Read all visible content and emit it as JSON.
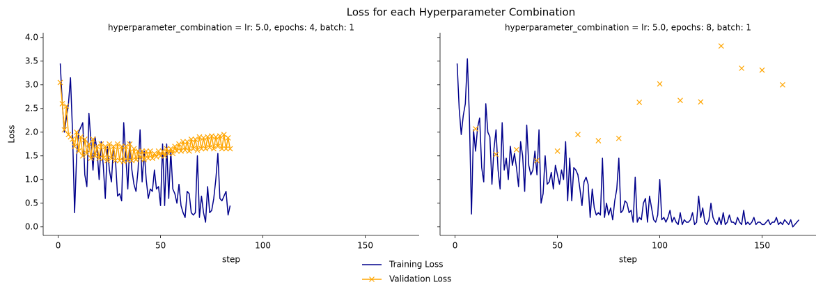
{
  "title": "Loss for each Hyperparameter Combination",
  "sharey": true,
  "chart_data": [
    {
      "type": "line",
      "title": "hyperparameter_combination = lr: 5.0, epochs: 4, batch: 1",
      "xlabel": "step",
      "ylabel": "Loss",
      "xlim": [
        -7.35,
        176.35
      ],
      "xticks": [
        0,
        50,
        100,
        150
      ],
      "ylim": [
        -0.18,
        4.1
      ],
      "yticks": [
        {
          "value": 0,
          "label": "0.0"
        },
        0.5,
        {
          "value": 1,
          "label": "1.0"
        },
        1.5,
        {
          "value": 2,
          "label": "2.0"
        },
        2.5,
        {
          "value": 3,
          "label": "3.0"
        },
        3.5,
        {
          "value": 4,
          "label": "4.0"
        }
      ],
      "series": [
        {
          "name": "Training Loss",
          "color": "#00008b",
          "line": true,
          "marker": "none",
          "x": [
            1,
            2,
            3,
            4,
            5,
            6,
            7,
            8,
            9,
            10,
            11,
            12,
            13,
            14,
            15,
            16,
            17,
            18,
            19,
            20,
            21,
            22,
            23,
            24,
            25,
            26,
            27,
            28,
            29,
            30,
            31,
            32,
            33,
            34,
            35,
            36,
            37,
            38,
            39,
            40,
            41,
            42,
            43,
            44,
            45,
            46,
            47,
            48,
            49,
            50,
            51,
            52,
            53,
            54,
            55,
            56,
            57,
            58,
            59,
            60,
            61,
            62,
            63,
            64,
            65,
            66,
            67,
            68,
            69,
            70,
            71,
            72,
            73,
            74,
            75,
            76,
            77,
            78,
            79,
            80,
            81,
            82,
            83,
            84
          ],
          "values": [
            3.45,
            2.6,
            2.0,
            2.3,
            2.6,
            3.15,
            2.0,
            0.3,
            1.5,
            2.0,
            2.1,
            2.2,
            1.1,
            0.85,
            2.4,
            1.8,
            1.2,
            1.9,
            1.6,
            1.0,
            1.8,
            1.3,
            0.6,
            1.7,
            1.2,
            0.95,
            1.7,
            1.4,
            0.65,
            0.7,
            0.55,
            2.2,
            1.5,
            0.8,
            1.8,
            1.2,
            0.9,
            0.75,
            1.2,
            2.05,
            0.95,
            1.6,
            1.0,
            0.6,
            0.8,
            0.75,
            1.2,
            0.8,
            0.85,
            0.45,
            1.75,
            0.45,
            1.75,
            0.6,
            1.6,
            0.8,
            0.7,
            0.5,
            0.9,
            0.45,
            0.3,
            0.2,
            0.75,
            0.7,
            0.3,
            0.25,
            0.3,
            1.5,
            0.2,
            0.65,
            0.3,
            0.1,
            0.85,
            0.3,
            0.35,
            0.6,
            1.0,
            1.55,
            0.6,
            0.55,
            0.65,
            0.75,
            0.25,
            0.45
          ]
        },
        {
          "name": "Validation Loss",
          "color": "#ffa500",
          "line": true,
          "marker": "x",
          "x": [
            1,
            2,
            3,
            4,
            5,
            6,
            7,
            8,
            9,
            10,
            11,
            12,
            13,
            14,
            15,
            16,
            17,
            18,
            19,
            20,
            21,
            22,
            23,
            24,
            25,
            26,
            27,
            28,
            29,
            30,
            31,
            32,
            33,
            34,
            35,
            36,
            37,
            38,
            39,
            40,
            41,
            42,
            43,
            44,
            45,
            46,
            47,
            48,
            49,
            50,
            51,
            52,
            53,
            54,
            55,
            56,
            57,
            58,
            59,
            60,
            61,
            62,
            63,
            64,
            65,
            66,
            67,
            68,
            69,
            70,
            71,
            72,
            73,
            74,
            75,
            76,
            77,
            78,
            79,
            80,
            81,
            82,
            83,
            84
          ],
          "values": [
            3.05,
            2.6,
            2.05,
            2.55,
            1.95,
            1.9,
            1.85,
            1.7,
            2.0,
            1.6,
            1.9,
            1.5,
            1.85,
            1.55,
            1.75,
            1.45,
            1.85,
            1.5,
            1.7,
            1.45,
            1.75,
            1.45,
            1.7,
            1.4,
            1.75,
            1.45,
            1.7,
            1.4,
            1.75,
            1.4,
            1.7,
            1.38,
            1.7,
            1.4,
            1.75,
            1.4,
            1.65,
            1.42,
            1.6,
            1.45,
            1.6,
            1.42,
            1.6,
            1.45,
            1.6,
            1.45,
            1.55,
            1.48,
            1.6,
            1.5,
            1.6,
            1.5,
            1.65,
            1.55,
            1.65,
            1.55,
            1.7,
            1.6,
            1.75,
            1.6,
            1.8,
            1.62,
            1.8,
            1.6,
            1.85,
            1.65,
            1.85,
            1.62,
            1.9,
            1.65,
            1.88,
            1.65,
            1.9,
            1.68,
            1.92,
            1.65,
            1.9,
            1.7,
            1.92,
            1.65,
            1.95,
            1.65,
            1.88,
            1.65
          ]
        }
      ]
    },
    {
      "type": "line",
      "title": "hyperparameter_combination = lr: 5.0, epochs: 8, batch: 1",
      "xlabel": "step",
      "xlim": [
        -7.35,
        176.35
      ],
      "xticks": [
        0,
        50,
        100,
        150
      ],
      "series": [
        {
          "name": "Training Loss",
          "color": "#00008b",
          "line": true,
          "marker": "none",
          "x": [
            1,
            2,
            3,
            4,
            5,
            6,
            7,
            8,
            9,
            10,
            11,
            12,
            13,
            14,
            15,
            16,
            17,
            18,
            19,
            20,
            21,
            22,
            23,
            24,
            25,
            26,
            27,
            28,
            29,
            30,
            31,
            32,
            33,
            34,
            35,
            36,
            37,
            38,
            39,
            40,
            41,
            42,
            43,
            44,
            45,
            46,
            47,
            48,
            49,
            50,
            51,
            52,
            53,
            54,
            55,
            56,
            57,
            58,
            59,
            60,
            61,
            62,
            63,
            64,
            65,
            66,
            67,
            68,
            69,
            70,
            71,
            72,
            73,
            74,
            75,
            76,
            77,
            78,
            79,
            80,
            81,
            82,
            83,
            84,
            85,
            86,
            87,
            88,
            89,
            90,
            91,
            92,
            93,
            94,
            95,
            96,
            97,
            98,
            99,
            100,
            101,
            102,
            103,
            104,
            105,
            106,
            107,
            108,
            109,
            110,
            111,
            112,
            113,
            114,
            115,
            116,
            117,
            118,
            119,
            120,
            121,
            122,
            123,
            124,
            125,
            126,
            127,
            128,
            129,
            130,
            131,
            132,
            133,
            134,
            135,
            136,
            137,
            138,
            139,
            140,
            141,
            142,
            143,
            144,
            145,
            146,
            147,
            148,
            149,
            150,
            151,
            152,
            153,
            154,
            155,
            156,
            157,
            158,
            159,
            160,
            161,
            162,
            163,
            164,
            165,
            166,
            167,
            168
          ],
          "values": [
            3.45,
            2.5,
            1.95,
            2.35,
            2.6,
            3.55,
            2.3,
            0.27,
            2.05,
            1.6,
            2.1,
            2.3,
            1.25,
            0.95,
            2.6,
            2.0,
            1.9,
            0.9,
            1.65,
            2.05,
            1.2,
            0.8,
            2.2,
            1.2,
            1.45,
            1.0,
            1.7,
            1.3,
            1.55,
            1.25,
            0.85,
            1.8,
            1.5,
            0.75,
            2.15,
            1.3,
            1.1,
            1.2,
            1.6,
            1.1,
            2.05,
            0.5,
            0.7,
            1.5,
            0.9,
            0.95,
            1.15,
            0.8,
            1.3,
            1.1,
            0.9,
            1.2,
            1.0,
            1.8,
            0.55,
            1.45,
            0.55,
            1.25,
            1.2,
            1.1,
            0.8,
            0.45,
            0.95,
            1.05,
            0.9,
            0.2,
            0.8,
            0.4,
            0.25,
            0.3,
            0.25,
            1.45,
            0.2,
            0.5,
            0.25,
            0.4,
            0.15,
            0.55,
            0.8,
            1.45,
            0.3,
            0.35,
            0.55,
            0.5,
            0.3,
            0.35,
            0.1,
            1.05,
            0.1,
            0.2,
            0.15,
            0.5,
            0.6,
            0.1,
            0.65,
            0.4,
            0.15,
            0.1,
            0.25,
            1.0,
            0.15,
            0.2,
            0.1,
            0.2,
            0.35,
            0.1,
            0.2,
            0.1,
            0.05,
            0.3,
            0.05,
            0.15,
            0.1,
            0.1,
            0.15,
            0.3,
            0.05,
            0.1,
            0.65,
            0.2,
            0.4,
            0.1,
            0.05,
            0.15,
            0.5,
            0.2,
            0.1,
            0.05,
            0.2,
            0.05,
            0.3,
            0.05,
            0.1,
            0.25,
            0.1,
            0.1,
            0.05,
            0.2,
            0.1,
            0.05,
            0.35,
            0.05,
            0.1,
            0.05,
            0.1,
            0.2,
            0.05,
            0.1,
            0.1,
            0.05,
            0.05,
            0.1,
            0.15,
            0.05,
            0.1,
            0.1,
            0.2,
            0.05,
            0.1,
            0.05,
            0.15,
            0.1,
            0.05,
            0.15,
            0.0,
            0.05,
            0.1,
            0.15
          ]
        },
        {
          "name": "Validation Loss",
          "color": "#ffa500",
          "line": false,
          "marker": "x",
          "x": [
            10,
            20,
            30,
            40,
            50,
            60,
            70,
            80,
            90,
            100,
            110,
            120,
            130,
            140,
            150,
            160
          ],
          "values": [
            2.07,
            1.53,
            1.63,
            1.4,
            1.6,
            1.95,
            1.82,
            1.87,
            2.63,
            3.02,
            2.67,
            2.64,
            3.82,
            3.35,
            3.31,
            3.0
          ]
        }
      ]
    }
  ]
}
